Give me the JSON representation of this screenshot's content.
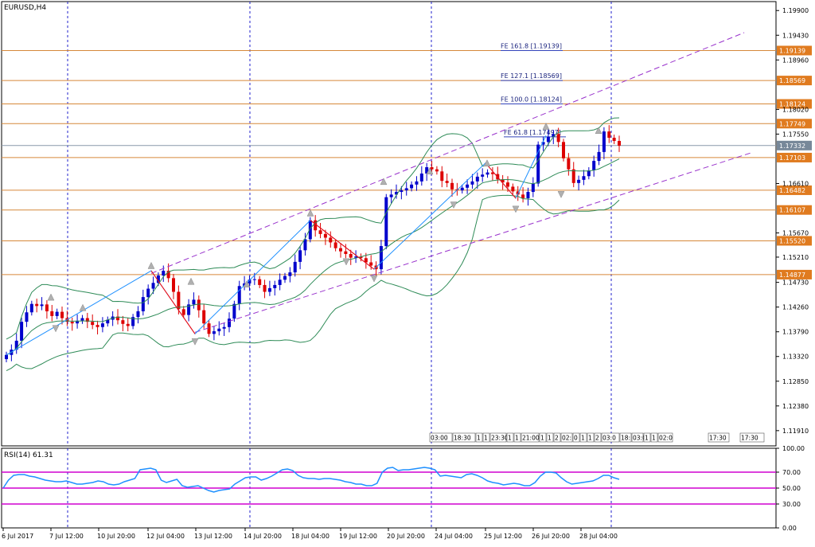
{
  "chart_data": [
    {
      "type": "candlestick",
      "title": "EURUSD,H4",
      "y_ticks": [
        "1.19900",
        "1.19430",
        "1.18960",
        "1.18020",
        "1.17550",
        "1.16610",
        "1.15670",
        "1.15210",
        "1.14730",
        "1.14260",
        "1.13790",
        "1.13320",
        "1.12850",
        "1.12380",
        "1.11910"
      ],
      "ylim": [
        1.1162,
        1.2007
      ],
      "price_labels": [
        {
          "value": "1.19139",
          "color": "#e07b1f"
        },
        {
          "value": "1.18569",
          "color": "#e07b1f"
        },
        {
          "value": "1.18124",
          "color": "#e07b1f"
        },
        {
          "value": "1.17749",
          "color": "#e07b1f"
        },
        {
          "value": "1.17332",
          "color": "#778899"
        },
        {
          "value": "1.17103",
          "color": "#e07b1f"
        },
        {
          "value": "1.16482",
          "color": "#e07b1f"
        },
        {
          "value": "1.16107",
          "color": "#e07b1f"
        },
        {
          "value": "1.15520",
          "color": "#e07b1f"
        },
        {
          "value": "1.14877",
          "color": "#e07b1f"
        }
      ],
      "fibo_labels": [
        {
          "text": "FE 161.8 [1.19139]",
          "value": 1.19139
        },
        {
          "text": "FE 127.1 [1.18569]",
          "value": 1.18569
        },
        {
          "text": "FE 100.0 [1.18124]",
          "value": 1.18124
        },
        {
          "text": "FE 61.8 [1.17497]",
          "value": 1.17497
        }
      ],
      "session_boxes": [
        "03:00",
        "18:30",
        "1",
        "1",
        "23:30",
        "1",
        "1",
        "21:00",
        "1",
        "1",
        "2",
        "02:",
        "0",
        "1",
        "1",
        "2",
        "03:0",
        "18:",
        "03:0",
        "1",
        "1",
        "02:0",
        "17:30",
        "17:30"
      ],
      "x_labels": [
        "6 Jul 2017",
        "7 Jul 12:00",
        "10 Jul 20:00",
        "12 Jul 04:00",
        "13 Jul 12:00",
        "14 Jul 20:00",
        "18 Jul 04:00",
        "19 Jul 12:00",
        "20 Jul 20:00",
        "24 Jul 04:00",
        "25 Jul 12:00",
        "26 Jul 20:00",
        "28 Jul 04:00"
      ],
      "candles_close": [
        1.1335,
        1.1345,
        1.1362,
        1.1398,
        1.1416,
        1.1432,
        1.1428,
        1.1431,
        1.1418,
        1.1409,
        1.1417,
        1.1405,
        1.1398,
        1.1395,
        1.14,
        1.1405,
        1.1398,
        1.1392,
        1.1388,
        1.1395,
        1.1402,
        1.1408,
        1.1401,
        1.1394,
        1.139,
        1.1407,
        1.1418,
        1.1445,
        1.1461,
        1.1472,
        1.1486,
        1.1495,
        1.1481,
        1.1455,
        1.1422,
        1.1411,
        1.1431,
        1.144,
        1.142,
        1.1395,
        1.1375,
        1.138,
        1.1385,
        1.1388,
        1.1404,
        1.1432,
        1.1466,
        1.1471,
        1.1478,
        1.1479,
        1.1468,
        1.1455,
        1.1462,
        1.1468,
        1.1478,
        1.1485,
        1.1492,
        1.1512,
        1.1534,
        1.1555,
        1.1591,
        1.1572,
        1.1565,
        1.1558,
        1.1549,
        1.1538,
        1.1532,
        1.1527,
        1.152,
        1.1522,
        1.1519,
        1.1511,
        1.1505,
        1.1498,
        1.1542,
        1.1635,
        1.164,
        1.1645,
        1.1648,
        1.1652,
        1.1659,
        1.1665,
        1.168,
        1.1692,
        1.1688,
        1.1684,
        1.1666,
        1.1662,
        1.165,
        1.1648,
        1.1653,
        1.1659,
        1.1665,
        1.1674,
        1.1678,
        1.1682,
        1.1679,
        1.1669,
        1.1663,
        1.1655,
        1.1646,
        1.164,
        1.1633,
        1.1645,
        1.1661,
        1.1735,
        1.174,
        1.175,
        1.1755,
        1.174,
        1.1709,
        1.1688,
        1.1662,
        1.1668,
        1.1675,
        1.1686,
        1.1704,
        1.1721,
        1.176,
        1.1748,
        1.1742,
        1.1733
      ],
      "bands": [
        "upper",
        "middle",
        "lower"
      ],
      "channel": "dashed-violet",
      "zigzag": "blue-red",
      "grid": "vertical-dashed"
    },
    {
      "type": "line",
      "title": "RSI(14) 61.31",
      "y_ticks": [
        "100.00",
        "70.00",
        "50.00",
        "30.00",
        "0.00"
      ],
      "ylim": [
        0,
        100
      ],
      "levels": [
        70,
        50,
        30
      ],
      "values": [
        50,
        60,
        66,
        67,
        67,
        65,
        64,
        62,
        60,
        59,
        58,
        58,
        59,
        57,
        55,
        55,
        56,
        57,
        59,
        58,
        55,
        54,
        55,
        58,
        60,
        62,
        73,
        74,
        75,
        73,
        60,
        57,
        59,
        61,
        53,
        51,
        52,
        53,
        50,
        47,
        45,
        47,
        48,
        49,
        55,
        59,
        63,
        64,
        64,
        60,
        62,
        65,
        69,
        73,
        74,
        72,
        66,
        63,
        62,
        62,
        61,
        62,
        62,
        61,
        60,
        58,
        57,
        55,
        55,
        53,
        53,
        56,
        70,
        75,
        76,
        72,
        73,
        73,
        74,
        75,
        76,
        75,
        73,
        65,
        66,
        65,
        64,
        63,
        67,
        68,
        66,
        63,
        59,
        57,
        56,
        54,
        55,
        56,
        55,
        53,
        53,
        57,
        65,
        70,
        70,
        69,
        63,
        58,
        55,
        56,
        57,
        58,
        59,
        62,
        66,
        66,
        63,
        61
      ]
    }
  ]
}
